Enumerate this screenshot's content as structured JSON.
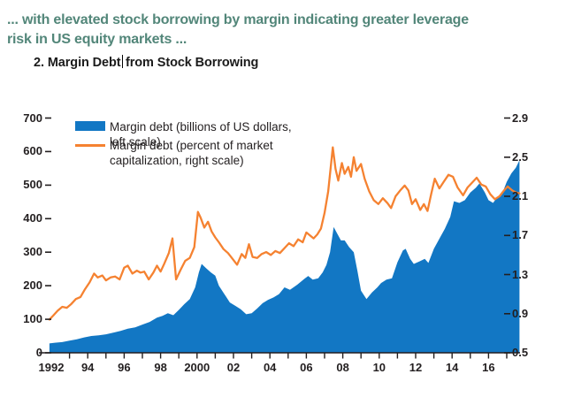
{
  "header": {
    "line1": "... with elevated stock borrowing by margin indicating greater leverage",
    "line2": "risk in US equity markets ...",
    "color": "#528679"
  },
  "figure_title": {
    "part_before_caret": "2. Margin Debt",
    "part_after_caret": "from Stock Borrowing"
  },
  "legend": {
    "item1": "Margin debt (billions of US dollars, left scale)",
    "item2": "Margin debt (percent of market capitalization, right scale)"
  },
  "colors": {
    "area_blue": "#1277c4",
    "line_orange": "#f58231",
    "axis_black": "#231f20"
  },
  "chart_data": {
    "type": "area",
    "title": "2. Margin Debt from Stock Borrowing",
    "x_axis": {
      "tick_labels": [
        "1992",
        "94",
        "96",
        "98",
        "2000",
        "02",
        "04",
        "06",
        "08",
        "10",
        "12",
        "14",
        "16"
      ],
      "tick_years": [
        1992,
        1994,
        1996,
        1998,
        2000,
        2002,
        2004,
        2006,
        2008,
        2010,
        2012,
        2014,
        2016
      ],
      "minor_tick_step_years": 1,
      "range": [
        1991.9,
        2018.0
      ]
    },
    "left_axis": {
      "tick_labels": [
        "0",
        "100",
        "200",
        "300",
        "400",
        "500",
        "600",
        "700"
      ],
      "ticks": [
        0,
        100,
        200,
        300,
        400,
        500,
        600,
        700
      ],
      "range": [
        0,
        700
      ]
    },
    "right_axis": {
      "tick_labels": [
        "0.5",
        "0.9",
        "1.3",
        "1.7",
        "2.1",
        "2.5",
        "2.9"
      ],
      "ticks": [
        0.5,
        0.9,
        1.3,
        1.7,
        2.1,
        2.5,
        2.9
      ],
      "range": [
        0.5,
        2.9
      ]
    },
    "grid": false,
    "legend_position": "top-left",
    "series": [
      {
        "name": "Margin debt (billions of US dollars, left scale)",
        "type": "area",
        "axis": "left",
        "color": "#1277c4",
        "points": [
          [
            1991.9,
            28
          ],
          [
            1992.2,
            30
          ],
          [
            1992.6,
            32
          ],
          [
            1993.0,
            36
          ],
          [
            1993.4,
            40
          ],
          [
            1993.8,
            46
          ],
          [
            1994.2,
            50
          ],
          [
            1994.6,
            52
          ],
          [
            1995.0,
            55
          ],
          [
            1995.4,
            60
          ],
          [
            1995.8,
            65
          ],
          [
            1996.2,
            72
          ],
          [
            1996.6,
            76
          ],
          [
            1997.0,
            84
          ],
          [
            1997.4,
            92
          ],
          [
            1997.8,
            105
          ],
          [
            1998.1,
            110
          ],
          [
            1998.4,
            118
          ],
          [
            1998.7,
            112
          ],
          [
            1999.0,
            128
          ],
          [
            1999.3,
            145
          ],
          [
            1999.6,
            160
          ],
          [
            1999.9,
            195
          ],
          [
            2000.1,
            240
          ],
          [
            2000.25,
            265
          ],
          [
            2000.5,
            252
          ],
          [
            2000.75,
            240
          ],
          [
            2001.0,
            230
          ],
          [
            2001.2,
            200
          ],
          [
            2001.5,
            175
          ],
          [
            2001.8,
            150
          ],
          [
            2002.1,
            140
          ],
          [
            2002.4,
            130
          ],
          [
            2002.7,
            115
          ],
          [
            2003.0,
            118
          ],
          [
            2003.3,
            132
          ],
          [
            2003.6,
            148
          ],
          [
            2003.9,
            158
          ],
          [
            2004.2,
            165
          ],
          [
            2004.5,
            175
          ],
          [
            2004.8,
            195
          ],
          [
            2005.1,
            188
          ],
          [
            2005.5,
            203
          ],
          [
            2005.9,
            221
          ],
          [
            2006.1,
            229
          ],
          [
            2006.35,
            218
          ],
          [
            2006.65,
            222
          ],
          [
            2006.9,
            240
          ],
          [
            2007.1,
            262
          ],
          [
            2007.3,
            300
          ],
          [
            2007.5,
            375
          ],
          [
            2007.7,
            355
          ],
          [
            2007.9,
            335
          ],
          [
            2008.1,
            335
          ],
          [
            2008.35,
            315
          ],
          [
            2008.6,
            300
          ],
          [
            2008.8,
            245
          ],
          [
            2009.0,
            185
          ],
          [
            2009.3,
            160
          ],
          [
            2009.6,
            180
          ],
          [
            2009.9,
            195
          ],
          [
            2010.1,
            208
          ],
          [
            2010.4,
            218
          ],
          [
            2010.7,
            222
          ],
          [
            2011.0,
            270
          ],
          [
            2011.3,
            305
          ],
          [
            2011.45,
            310
          ],
          [
            2011.7,
            280
          ],
          [
            2011.9,
            265
          ],
          [
            2012.2,
            272
          ],
          [
            2012.5,
            280
          ],
          [
            2012.7,
            268
          ],
          [
            2013.0,
            310
          ],
          [
            2013.3,
            340
          ],
          [
            2013.6,
            370
          ],
          [
            2013.9,
            405
          ],
          [
            2014.1,
            452
          ],
          [
            2014.4,
            447
          ],
          [
            2014.7,
            455
          ],
          [
            2015.0,
            478
          ],
          [
            2015.3,
            492
          ],
          [
            2015.5,
            505
          ],
          [
            2015.8,
            478
          ],
          [
            2016.0,
            455
          ],
          [
            2016.25,
            447
          ],
          [
            2016.5,
            465
          ],
          [
            2016.75,
            475
          ],
          [
            2017.0,
            510
          ],
          [
            2017.25,
            535
          ],
          [
            2017.5,
            552
          ],
          [
            2017.7,
            574
          ]
        ]
      },
      {
        "name": "Margin debt (percent of market capitalization, right scale)",
        "type": "line",
        "axis": "right",
        "color": "#f58231",
        "points": [
          [
            1991.9,
            0.84
          ],
          [
            1992.1,
            0.88
          ],
          [
            1992.35,
            0.93
          ],
          [
            1992.6,
            0.97
          ],
          [
            1992.85,
            0.96
          ],
          [
            1993.1,
            1.0
          ],
          [
            1993.35,
            1.05
          ],
          [
            1993.6,
            1.07
          ],
          [
            1993.85,
            1.15
          ],
          [
            1994.1,
            1.22
          ],
          [
            1994.35,
            1.31
          ],
          [
            1994.55,
            1.27
          ],
          [
            1994.8,
            1.29
          ],
          [
            1995.0,
            1.24
          ],
          [
            1995.25,
            1.27
          ],
          [
            1995.5,
            1.28
          ],
          [
            1995.75,
            1.25
          ],
          [
            1996.0,
            1.37
          ],
          [
            1996.2,
            1.39
          ],
          [
            1996.45,
            1.31
          ],
          [
            1996.7,
            1.34
          ],
          [
            1996.9,
            1.32
          ],
          [
            1997.1,
            1.33
          ],
          [
            1997.35,
            1.25
          ],
          [
            1997.6,
            1.32
          ],
          [
            1997.8,
            1.39
          ],
          [
            1998.0,
            1.33
          ],
          [
            1998.2,
            1.41
          ],
          [
            1998.45,
            1.52
          ],
          [
            1998.65,
            1.67
          ],
          [
            1998.85,
            1.25
          ],
          [
            1999.1,
            1.35
          ],
          [
            1999.35,
            1.44
          ],
          [
            1999.6,
            1.47
          ],
          [
            1999.85,
            1.58
          ],
          [
            2000.05,
            1.94
          ],
          [
            2000.2,
            1.88
          ],
          [
            2000.4,
            1.78
          ],
          [
            2000.6,
            1.84
          ],
          [
            2000.8,
            1.74
          ],
          [
            2001.0,
            1.68
          ],
          [
            2001.2,
            1.63
          ],
          [
            2001.45,
            1.56
          ],
          [
            2001.7,
            1.52
          ],
          [
            2001.95,
            1.46
          ],
          [
            2002.2,
            1.4
          ],
          [
            2002.45,
            1.51
          ],
          [
            2002.65,
            1.47
          ],
          [
            2002.85,
            1.61
          ],
          [
            2003.05,
            1.48
          ],
          [
            2003.3,
            1.47
          ],
          [
            2003.55,
            1.51
          ],
          [
            2003.8,
            1.53
          ],
          [
            2004.05,
            1.5
          ],
          [
            2004.3,
            1.54
          ],
          [
            2004.55,
            1.52
          ],
          [
            2004.8,
            1.57
          ],
          [
            2005.05,
            1.62
          ],
          [
            2005.3,
            1.59
          ],
          [
            2005.55,
            1.66
          ],
          [
            2005.8,
            1.63
          ],
          [
            2006.0,
            1.73
          ],
          [
            2006.2,
            1.7
          ],
          [
            2006.4,
            1.67
          ],
          [
            2006.6,
            1.71
          ],
          [
            2006.8,
            1.77
          ],
          [
            2007.0,
            1.93
          ],
          [
            2007.2,
            2.15
          ],
          [
            2007.45,
            2.6
          ],
          [
            2007.6,
            2.38
          ],
          [
            2007.75,
            2.26
          ],
          [
            2007.95,
            2.44
          ],
          [
            2008.1,
            2.33
          ],
          [
            2008.3,
            2.4
          ],
          [
            2008.45,
            2.3
          ],
          [
            2008.6,
            2.5
          ],
          [
            2008.75,
            2.36
          ],
          [
            2009.0,
            2.43
          ],
          [
            2009.2,
            2.28
          ],
          [
            2009.45,
            2.15
          ],
          [
            2009.7,
            2.06
          ],
          [
            2009.95,
            2.02
          ],
          [
            2010.2,
            2.08
          ],
          [
            2010.45,
            2.03
          ],
          [
            2010.65,
            1.98
          ],
          [
            2010.9,
            2.1
          ],
          [
            2011.15,
            2.16
          ],
          [
            2011.4,
            2.21
          ],
          [
            2011.6,
            2.16
          ],
          [
            2011.8,
            2.02
          ],
          [
            2012.0,
            2.07
          ],
          [
            2012.25,
            1.96
          ],
          [
            2012.45,
            2.02
          ],
          [
            2012.65,
            1.95
          ],
          [
            2012.85,
            2.12
          ],
          [
            2013.05,
            2.28
          ],
          [
            2013.3,
            2.18
          ],
          [
            2013.55,
            2.25
          ],
          [
            2013.8,
            2.32
          ],
          [
            2014.05,
            2.3
          ],
          [
            2014.3,
            2.19
          ],
          [
            2014.6,
            2.11
          ],
          [
            2014.85,
            2.19
          ],
          [
            2015.1,
            2.24
          ],
          [
            2015.35,
            2.29
          ],
          [
            2015.6,
            2.22
          ],
          [
            2015.85,
            2.2
          ],
          [
            2016.1,
            2.12
          ],
          [
            2016.35,
            2.07
          ],
          [
            2016.6,
            2.1
          ],
          [
            2016.85,
            2.16
          ],
          [
            2017.05,
            2.2
          ],
          [
            2017.3,
            2.16
          ],
          [
            2017.5,
            2.14
          ],
          [
            2017.7,
            2.13
          ]
        ]
      }
    ]
  }
}
